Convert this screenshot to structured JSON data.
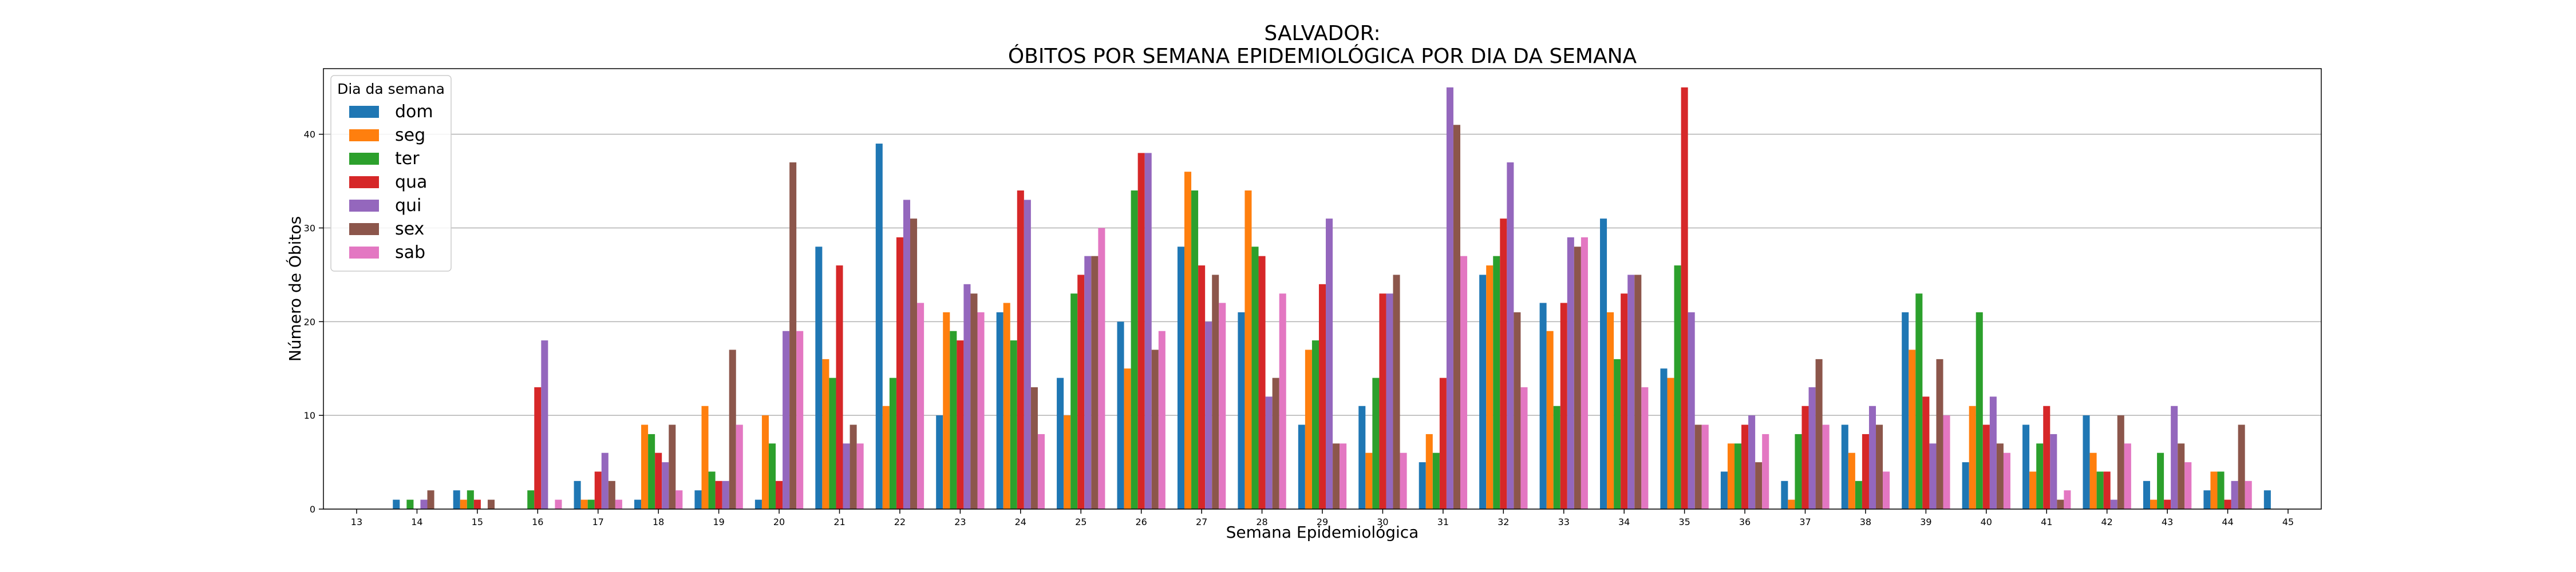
{
  "chart_data": {
    "type": "bar",
    "title_line1": "SALVADOR:",
    "title_line2": "ÓBITOS POR SEMANA EPIDEMIOLÓGICA POR DIA DA SEMANA",
    "xlabel": "Semana Epidemiológica",
    "ylabel": "Número de Óbitos",
    "ylim": [
      0,
      47
    ],
    "yticks": [
      0,
      10,
      20,
      30,
      40
    ],
    "grid": "horizontal",
    "legend_title": "Dia da semana",
    "legend_position": "top-left",
    "categories": [
      "13",
      "14",
      "15",
      "16",
      "17",
      "18",
      "19",
      "20",
      "21",
      "22",
      "23",
      "24",
      "25",
      "26",
      "27",
      "28",
      "29",
      "30",
      "31",
      "32",
      "33",
      "34",
      "35",
      "36",
      "37",
      "38",
      "39",
      "40",
      "41",
      "42",
      "43",
      "44",
      "45"
    ],
    "series": [
      {
        "name": "dom",
        "color": "#1f77b4",
        "values": [
          0,
          1,
          2,
          0,
          3,
          1,
          2,
          1,
          28,
          39,
          10,
          21,
          14,
          20,
          28,
          21,
          9,
          11,
          5,
          25,
          22,
          31,
          15,
          4,
          3,
          9,
          21,
          5,
          9,
          10,
          3,
          2,
          2
        ]
      },
      {
        "name": "seg",
        "color": "#ff7f0e",
        "values": [
          0,
          0,
          1,
          0,
          1,
          9,
          11,
          10,
          16,
          11,
          21,
          22,
          10,
          15,
          36,
          34,
          17,
          6,
          8,
          26,
          19,
          21,
          14,
          7,
          1,
          6,
          17,
          11,
          4,
          6,
          1,
          4,
          0
        ]
      },
      {
        "name": "ter",
        "color": "#2ca02c",
        "values": [
          0,
          1,
          2,
          2,
          1,
          8,
          4,
          7,
          14,
          14,
          19,
          18,
          23,
          34,
          34,
          28,
          18,
          14,
          6,
          27,
          11,
          16,
          26,
          7,
          8,
          3,
          23,
          21,
          7,
          4,
          6,
          4,
          0
        ]
      },
      {
        "name": "qua",
        "color": "#d62728",
        "values": [
          0,
          0,
          1,
          13,
          4,
          6,
          3,
          3,
          26,
          29,
          18,
          34,
          25,
          38,
          26,
          27,
          24,
          23,
          14,
          31,
          22,
          23,
          45,
          9,
          11,
          8,
          12,
          9,
          11,
          4,
          1,
          1,
          0
        ]
      },
      {
        "name": "qui",
        "color": "#9467bd",
        "values": [
          0,
          1,
          0,
          18,
          6,
          5,
          3,
          19,
          7,
          33,
          24,
          33,
          27,
          38,
          20,
          12,
          31,
          23,
          45,
          37,
          29,
          25,
          21,
          10,
          13,
          11,
          7,
          12,
          8,
          1,
          11,
          3,
          0
        ]
      },
      {
        "name": "sex",
        "color": "#8c564b",
        "values": [
          0,
          2,
          1,
          0,
          3,
          9,
          17,
          37,
          9,
          31,
          23,
          13,
          27,
          17,
          25,
          14,
          7,
          25,
          41,
          21,
          28,
          25,
          9,
          5,
          16,
          9,
          16,
          7,
          1,
          10,
          7,
          9,
          0
        ]
      },
      {
        "name": "sab",
        "color": "#e377c2",
        "values": [
          0,
          0,
          0,
          1,
          1,
          2,
          9,
          19,
          7,
          22,
          21,
          8,
          30,
          19,
          22,
          23,
          7,
          6,
          27,
          13,
          29,
          13,
          9,
          8,
          9,
          4,
          10,
          6,
          2,
          7,
          5,
          3,
          0
        ]
      }
    ]
  }
}
